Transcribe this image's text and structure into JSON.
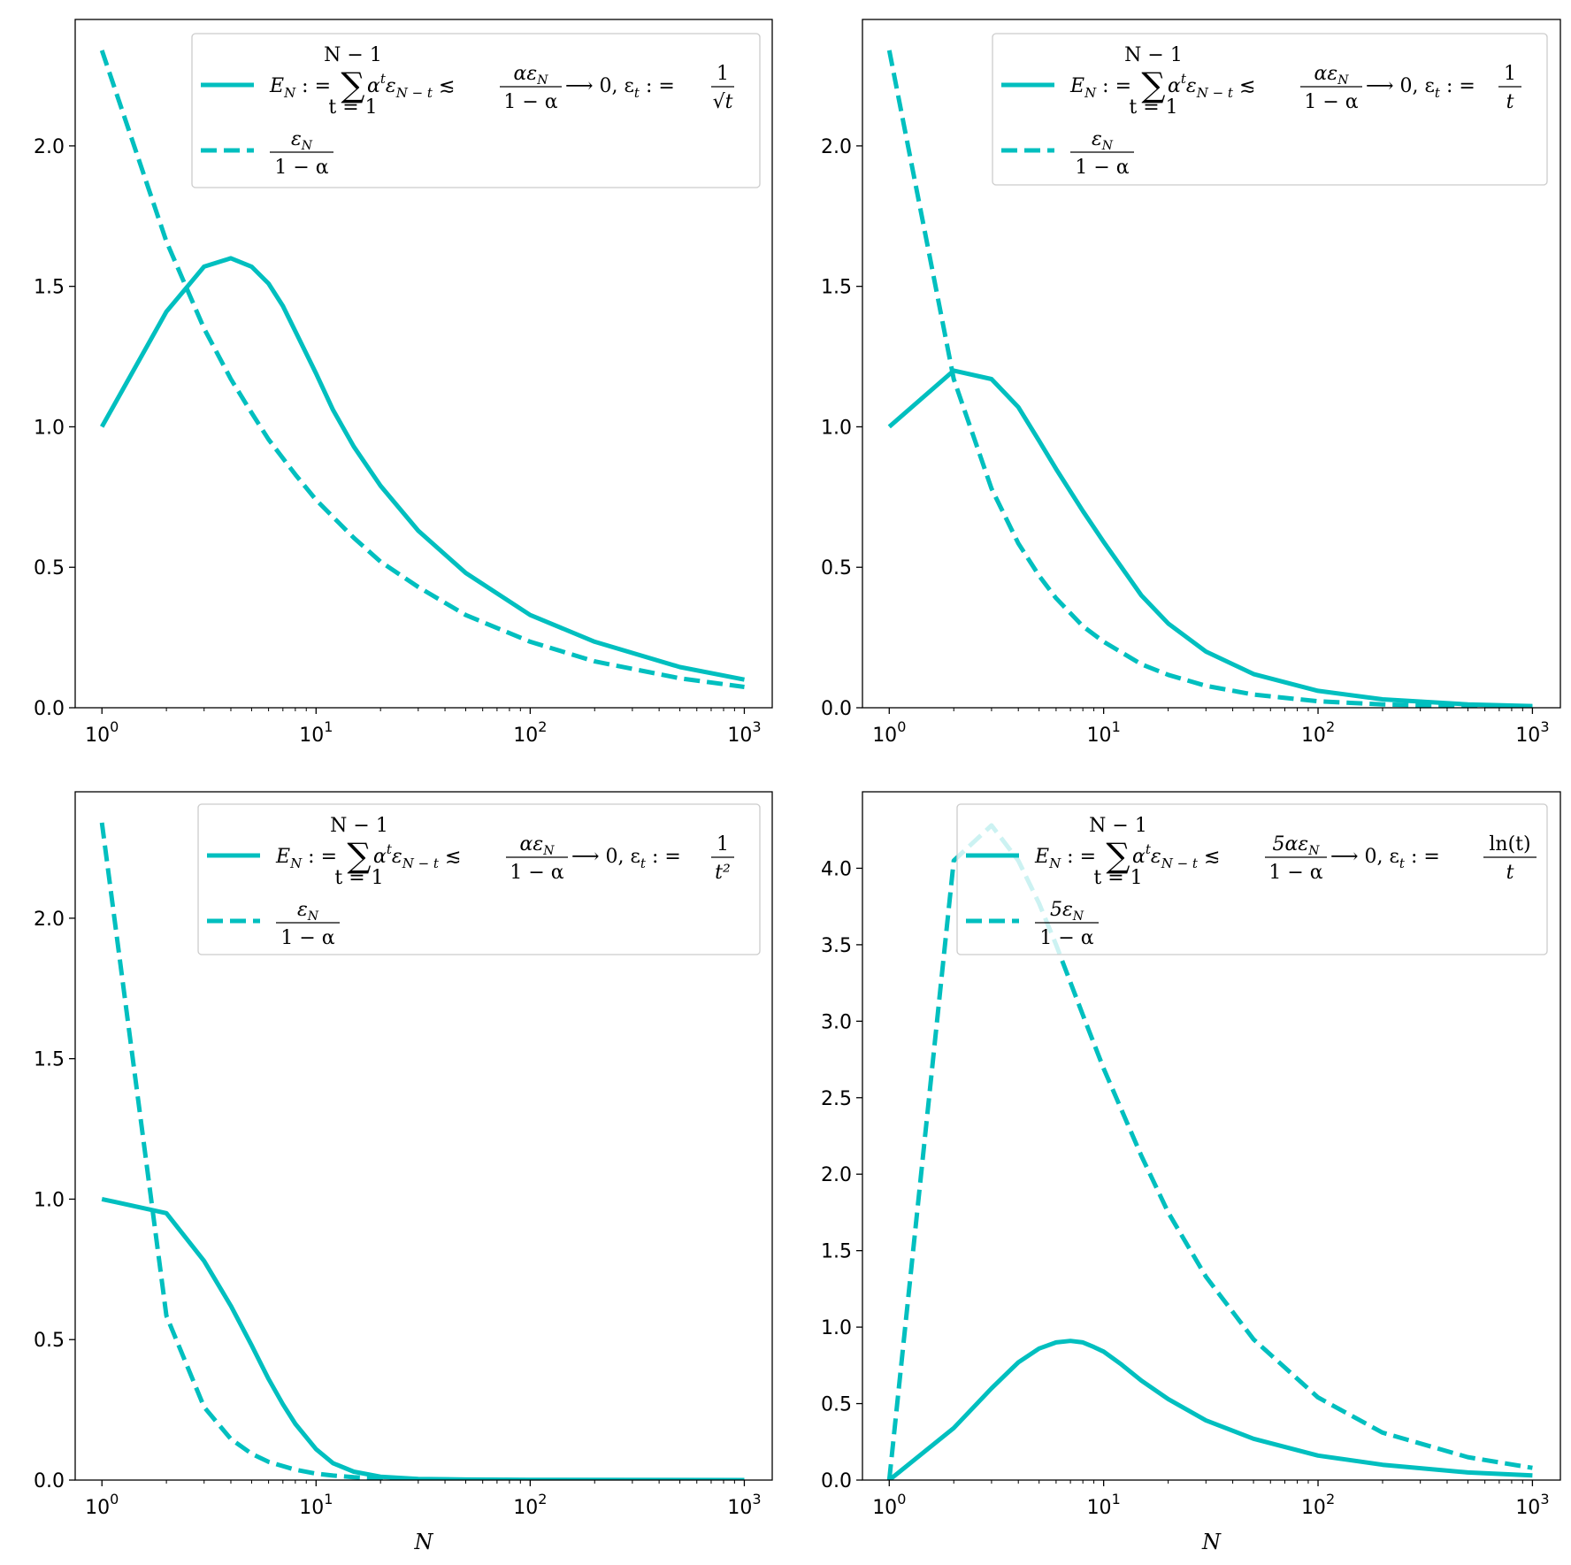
{
  "colors": {
    "series": "#00bfbf",
    "axis": "#000000",
    "legend_border": "#cccccc"
  },
  "chart_data": [
    {
      "type": "line",
      "xscale": "log",
      "xlim": [
        0.75,
        1350
      ],
      "xticks": [
        {
          "value": 1,
          "base": "10",
          "exp": "0"
        },
        {
          "value": 10,
          "base": "10",
          "exp": "1"
        },
        {
          "value": 100,
          "base": "10",
          "exp": "2"
        },
        {
          "value": 1000,
          "base": "10",
          "exp": "3"
        }
      ],
      "ylim": [
        0,
        2.45
      ],
      "yticks": [
        "0.0",
        "0.5",
        "1.0",
        "1.5",
        "2.0"
      ],
      "xlabel": "",
      "legend_position": "top-right",
      "series": [
        {
          "name": "E_N := Σ_{t=1}^{N−1} α^t ε_{N−t} ≲ αε_N/(1−α) ⟶ 0, ε_t := 1/√t",
          "style": "solid",
          "x": [
            1,
            2,
            3,
            4,
            5,
            6,
            7,
            8,
            10,
            12,
            15,
            20,
            30,
            50,
            100,
            200,
            500,
            1000
          ],
          "y": [
            1.0,
            1.41,
            1.57,
            1.6,
            1.57,
            1.51,
            1.43,
            1.34,
            1.19,
            1.06,
            0.93,
            0.79,
            0.63,
            0.48,
            0.33,
            0.235,
            0.145,
            0.1
          ]
        },
        {
          "name": "ε_N/(1−α)",
          "style": "dashed",
          "x": [
            1,
            2,
            3,
            4,
            5,
            6,
            8,
            10,
            15,
            20,
            30,
            50,
            100,
            200,
            500,
            1000
          ],
          "y": [
            2.34,
            1.66,
            1.35,
            1.17,
            1.05,
            0.955,
            0.83,
            0.74,
            0.605,
            0.52,
            0.43,
            0.33,
            0.235,
            0.165,
            0.105,
            0.074
          ]
        }
      ],
      "legend": {
        "entries": [
          {
            "prefix": "E",
            "sub": "N",
            "assign": " : = ",
            "sum_top": "N − 1",
            "sum_bot": "t = 1",
            "term": "α",
            "term_sup": "t",
            "term2": "ε",
            "term2_sub": "N − t",
            "rel": " ≲ ",
            "frac_num": "αε",
            "frac_num_sub": "N",
            "frac_den": "1 − α",
            "tail": "⟶ 0, ε",
            "tail_sub": "t",
            "tail2": " : =",
            "def_num": "1",
            "def_den": "√t"
          },
          {
            "frac_num": "ε",
            "frac_num_sub": "N",
            "frac_den": "1 − α"
          }
        ]
      }
    },
    {
      "type": "line",
      "xscale": "log",
      "xlim": [
        0.75,
        1350
      ],
      "xticks": [
        {
          "value": 1,
          "base": "10",
          "exp": "0"
        },
        {
          "value": 10,
          "base": "10",
          "exp": "1"
        },
        {
          "value": 100,
          "base": "10",
          "exp": "2"
        },
        {
          "value": 1000,
          "base": "10",
          "exp": "3"
        }
      ],
      "ylim": [
        0,
        2.45
      ],
      "yticks": [
        "0.0",
        "0.5",
        "1.0",
        "1.5",
        "2.0"
      ],
      "xlabel": "",
      "legend_position": "top-right",
      "series": [
        {
          "name": "E_N := Σ_{t=1}^{N−1} α^t ε_{N−t} ≲ αε_N/(1−α) ⟶ 0, ε_t := 1/t",
          "style": "solid",
          "x": [
            1,
            2,
            3,
            4,
            5,
            6,
            8,
            10,
            15,
            20,
            30,
            50,
            100,
            200,
            500,
            1000
          ],
          "y": [
            1.0,
            1.2,
            1.17,
            1.07,
            0.95,
            0.85,
            0.7,
            0.59,
            0.4,
            0.3,
            0.2,
            0.12,
            0.06,
            0.03,
            0.012,
            0.006
          ]
        },
        {
          "name": "ε_N/(1−α)",
          "style": "dashed",
          "x": [
            1,
            2,
            3,
            4,
            5,
            6,
            8,
            10,
            15,
            20,
            30,
            50,
            100,
            200,
            500,
            1000
          ],
          "y": [
            2.34,
            1.17,
            0.78,
            0.585,
            0.47,
            0.39,
            0.29,
            0.235,
            0.155,
            0.117,
            0.078,
            0.047,
            0.023,
            0.012,
            0.005,
            0.002
          ]
        }
      ],
      "legend": {
        "entries": [
          {
            "prefix": "E",
            "sub": "N",
            "assign": " : = ",
            "sum_top": "N − 1",
            "sum_bot": "t = 1",
            "term": "α",
            "term_sup": "t",
            "term2": "ε",
            "term2_sub": "N − t",
            "rel": " ≲ ",
            "frac_num": "αε",
            "frac_num_sub": "N",
            "frac_den": "1 − α",
            "tail": "⟶ 0, ε",
            "tail_sub": "t",
            "tail2": " : =",
            "def_num": "1",
            "def_den": "t"
          },
          {
            "frac_num": "ε",
            "frac_num_sub": "N",
            "frac_den": "1 − α"
          }
        ]
      }
    },
    {
      "type": "line",
      "xscale": "log",
      "xlim": [
        0.75,
        1350
      ],
      "xticks": [
        {
          "value": 1,
          "base": "10",
          "exp": "0"
        },
        {
          "value": 10,
          "base": "10",
          "exp": "1"
        },
        {
          "value": 100,
          "base": "10",
          "exp": "2"
        },
        {
          "value": 1000,
          "base": "10",
          "exp": "3"
        }
      ],
      "ylim": [
        0,
        2.45
      ],
      "yticks": [
        "0.0",
        "0.5",
        "1.0",
        "1.5",
        "2.0"
      ],
      "xlabel": "N",
      "legend_position": "top-right",
      "series": [
        {
          "name": "E_N := Σ_{t=1}^{N−1} α^t ε_{N−t} ≲ αε_N/(1−α) ⟶ 0, ε_t := 1/t²",
          "style": "solid",
          "x": [
            1,
            2,
            3,
            4,
            5,
            6,
            7,
            8,
            10,
            12,
            15,
            20,
            30,
            50,
            100,
            1000
          ],
          "y": [
            1.0,
            0.95,
            0.78,
            0.62,
            0.48,
            0.36,
            0.27,
            0.2,
            0.11,
            0.06,
            0.03,
            0.012,
            0.004,
            0.002,
            0.001,
            0.0
          ]
        },
        {
          "name": "ε_N/(1−α)",
          "style": "dashed",
          "x": [
            1,
            2,
            3,
            4,
            5,
            6,
            8,
            10,
            12,
            15,
            20,
            30,
            50,
            100,
            1000
          ],
          "y": [
            2.34,
            0.585,
            0.26,
            0.146,
            0.094,
            0.065,
            0.037,
            0.023,
            0.016,
            0.01,
            0.006,
            0.003,
            0.001,
            0.0,
            0.0
          ]
        }
      ],
      "legend": {
        "entries": [
          {
            "prefix": "E",
            "sub": "N",
            "assign": " : = ",
            "sum_top": "N − 1",
            "sum_bot": "t = 1",
            "term": "α",
            "term_sup": "t",
            "term2": "ε",
            "term2_sub": "N − t",
            "rel": " ≲ ",
            "frac_num": "αε",
            "frac_num_sub": "N",
            "frac_den": "1 − α",
            "tail": "⟶ 0, ε",
            "tail_sub": "t",
            "tail2": " : =",
            "def_num": "1",
            "def_den": "t²"
          },
          {
            "frac_num": "ε",
            "frac_num_sub": "N",
            "frac_den": "1 − α"
          }
        ]
      }
    },
    {
      "type": "line",
      "xscale": "log",
      "xlim": [
        0.75,
        1350
      ],
      "xticks": [
        {
          "value": 1,
          "base": "10",
          "exp": "0"
        },
        {
          "value": 10,
          "base": "10",
          "exp": "1"
        },
        {
          "value": 100,
          "base": "10",
          "exp": "2"
        },
        {
          "value": 1000,
          "base": "10",
          "exp": "3"
        }
      ],
      "ylim": [
        0,
        4.5
      ],
      "yticks": [
        "0.0",
        "0.5",
        "1.0",
        "1.5",
        "2.0",
        "2.5",
        "3.0",
        "3.5",
        "4.0"
      ],
      "xlabel": "N",
      "legend_position": "top-right",
      "series": [
        {
          "name": "E_N := Σ_{t=1}^{N−1} α^t ε_{N−t} ≲ 5αε_N/(1−α) ⟶ 0, ε_t := ln(t)/t",
          "style": "solid",
          "x": [
            1,
            2,
            3,
            4,
            5,
            6,
            7,
            8,
            9,
            10,
            12,
            15,
            20,
            30,
            50,
            100,
            200,
            500,
            1000
          ],
          "y": [
            0.0,
            0.34,
            0.6,
            0.77,
            0.86,
            0.9,
            0.91,
            0.9,
            0.87,
            0.84,
            0.76,
            0.65,
            0.53,
            0.39,
            0.27,
            0.16,
            0.1,
            0.05,
            0.03
          ]
        },
        {
          "name": "5ε_N/(1−α)",
          "style": "dashed",
          "x": [
            1,
            2,
            3,
            4,
            5,
            6,
            8,
            10,
            15,
            20,
            30,
            50,
            100,
            200,
            500,
            1000
          ],
          "y": [
            0.0,
            4.05,
            4.28,
            4.05,
            3.77,
            3.5,
            3.04,
            2.69,
            2.12,
            1.75,
            1.33,
            0.92,
            0.54,
            0.31,
            0.15,
            0.08
          ]
        }
      ],
      "legend": {
        "entries": [
          {
            "prefix": "E",
            "sub": "N",
            "assign": " : = ",
            "sum_top": "N − 1",
            "sum_bot": "t = 1",
            "term": "α",
            "term_sup": "t",
            "term2": "ε",
            "term2_sub": "N − t",
            "rel": " ≲ ",
            "frac_num": "5αε",
            "frac_num_sub": "N",
            "frac_den": "1 − α",
            "tail": "⟶ 0, ε",
            "tail_sub": "t",
            "tail2": " : =",
            "def_num": "ln(t)",
            "def_den": "t"
          },
          {
            "frac_num": "5ε",
            "frac_num_sub": "N",
            "frac_den": "1 − α"
          }
        ]
      }
    }
  ]
}
